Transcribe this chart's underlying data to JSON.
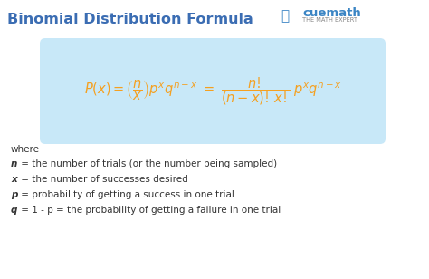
{
  "title": "Binomial Distribution Formula",
  "title_color": "#3B6DB3",
  "title_fontsize": 11.5,
  "bg_color": "#ffffff",
  "formula_box_color": "#C8E8F8",
  "formula_color": "#F5A020",
  "def_color": "#333333",
  "def_fontsize": 7.5,
  "where_text": "where",
  "definitions": [
    [
      "n",
      " = the number of trials (or the number being sampled)"
    ],
    [
      "x",
      " = the number of successes desired"
    ],
    [
      "p",
      " = probability of getting a success in one trial"
    ],
    [
      "q",
      " = 1 - p = the probability of getting a failure in one trial"
    ]
  ],
  "logo_blue": "#3B85C4",
  "logo_orange": "#F5A020",
  "logo_gray": "#888888",
  "logo_cuemath": "cuemath",
  "logo_sub": "THE MATH EXPERT"
}
